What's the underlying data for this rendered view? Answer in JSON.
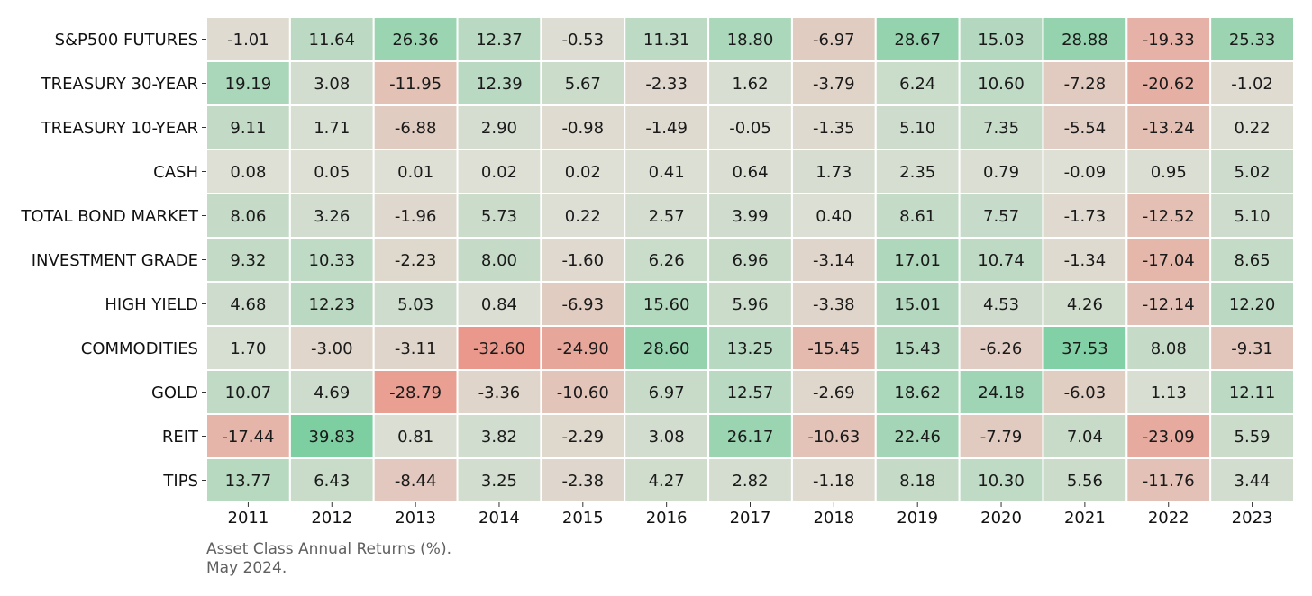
{
  "chart_data": {
    "type": "heatmap",
    "title": "",
    "xlabel": "",
    "ylabel": "",
    "x": [
      "2011",
      "2012",
      "2013",
      "2014",
      "2015",
      "2016",
      "2017",
      "2018",
      "2019",
      "2020",
      "2021",
      "2022",
      "2023"
    ],
    "y": [
      "S&P500 FUTURES",
      "TREASURY 30-YEAR",
      "TREASURY 10-YEAR",
      "CASH",
      "TOTAL BOND MARKET",
      "INVESTMENT GRADE",
      "HIGH YIELD",
      "COMMODITIES",
      "GOLD",
      "REIT",
      "TIPS"
    ],
    "values": [
      [
        "-1.01",
        "11.64",
        "26.36",
        "12.37",
        "-0.53",
        "11.31",
        "18.80",
        "-6.97",
        "28.67",
        "15.03",
        "28.88",
        "-19.33",
        "25.33"
      ],
      [
        "19.19",
        "3.08",
        "-11.95",
        "12.39",
        "5.67",
        "-2.33",
        "1.62",
        "-3.79",
        "6.24",
        "10.60",
        "-7.28",
        "-20.62",
        "-1.02"
      ],
      [
        "9.11",
        "1.71",
        "-6.88",
        "2.90",
        "-0.98",
        "-1.49",
        "-0.05",
        "-1.35",
        "5.10",
        "7.35",
        "-5.54",
        "-13.24",
        "0.22"
      ],
      [
        "0.08",
        "0.05",
        "0.01",
        "0.02",
        "0.02",
        "0.41",
        "0.64",
        "1.73",
        "2.35",
        "0.79",
        "-0.09",
        "0.95",
        "5.02"
      ],
      [
        "8.06",
        "3.26",
        "-1.96",
        "5.73",
        "0.22",
        "2.57",
        "3.99",
        "0.40",
        "8.61",
        "7.57",
        "-1.73",
        "-12.52",
        "5.10"
      ],
      [
        "9.32",
        "10.33",
        "-2.23",
        "8.00",
        "-1.60",
        "6.26",
        "6.96",
        "-3.14",
        "17.01",
        "10.74",
        "-1.34",
        "-17.04",
        "8.65"
      ],
      [
        "4.68",
        "12.23",
        "5.03",
        "0.84",
        "-6.93",
        "15.60",
        "5.96",
        "-3.38",
        "15.01",
        "4.53",
        "4.26",
        "-12.14",
        "12.20"
      ],
      [
        "1.70",
        "-3.00",
        "-3.11",
        "-32.60",
        "-24.90",
        "28.60",
        "13.25",
        "-15.45",
        "15.43",
        "-6.26",
        "37.53",
        "8.08",
        "-9.31"
      ],
      [
        "10.07",
        "4.69",
        "-28.79",
        "-3.36",
        "-10.60",
        "6.97",
        "12.57",
        "-2.69",
        "18.62",
        "24.18",
        "-6.03",
        "1.13",
        "12.11"
      ],
      [
        "-17.44",
        "39.83",
        "0.81",
        "3.82",
        "-2.29",
        "3.08",
        "26.17",
        "-10.63",
        "22.46",
        "-7.79",
        "7.04",
        "-23.09",
        "5.59"
      ],
      [
        "13.77",
        "6.43",
        "-8.44",
        "3.25",
        "-2.38",
        "4.27",
        "2.82",
        "-1.18",
        "8.18",
        "10.30",
        "5.56",
        "-11.76",
        "3.44"
      ]
    ],
    "color_scale": {
      "negative": "#ec8a7d",
      "neutral": "#dedfd5",
      "positive": "#7dcfa2",
      "vmin": -40,
      "vmax": 40
    },
    "caption": [
      "Asset Class Annual Returns (%).",
      "May 2024."
    ]
  }
}
